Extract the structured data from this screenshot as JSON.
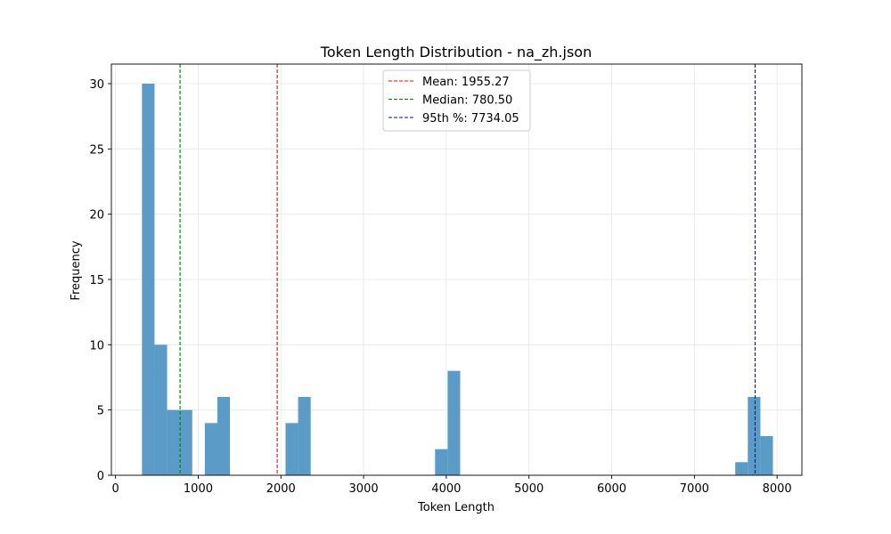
{
  "chart_data": {
    "type": "bar",
    "title": "Token Length Distribution - na_zh.json",
    "xlabel": "Token Length",
    "ylabel": "Frequency",
    "xlim": [
      -50,
      8300
    ],
    "ylim": [
      0,
      31.5
    ],
    "xticks": [
      0,
      1000,
      2000,
      3000,
      4000,
      5000,
      6000,
      7000,
      8000
    ],
    "yticks": [
      0,
      5,
      10,
      15,
      20,
      25,
      30
    ],
    "grid": true,
    "bar_color": "#5b9bc8",
    "bin_width": 152,
    "bins": [
      {
        "x0": 320,
        "count": 30
      },
      {
        "x0": 472,
        "count": 10
      },
      {
        "x0": 624,
        "count": 5
      },
      {
        "x0": 776,
        "count": 5
      },
      {
        "x0": 1080,
        "count": 4
      },
      {
        "x0": 1232,
        "count": 6
      },
      {
        "x0": 2056,
        "count": 4
      },
      {
        "x0": 2208,
        "count": 6
      },
      {
        "x0": 3864,
        "count": 2
      },
      {
        "x0": 4016,
        "count": 8
      },
      {
        "x0": 7494,
        "count": 1
      },
      {
        "x0": 7646,
        "count": 6
      },
      {
        "x0": 7798,
        "count": 3
      }
    ],
    "reference_lines": [
      {
        "label": "Mean: 1955.27",
        "value": 1955.27,
        "color": "#ff0000"
      },
      {
        "label": "Median: 780.50",
        "value": 780.5,
        "color": "#008000"
      },
      {
        "label": "95th %: 7734.05",
        "value": 7734.05,
        "color": "#0000ff"
      }
    ],
    "legend_position": "upper-center"
  }
}
